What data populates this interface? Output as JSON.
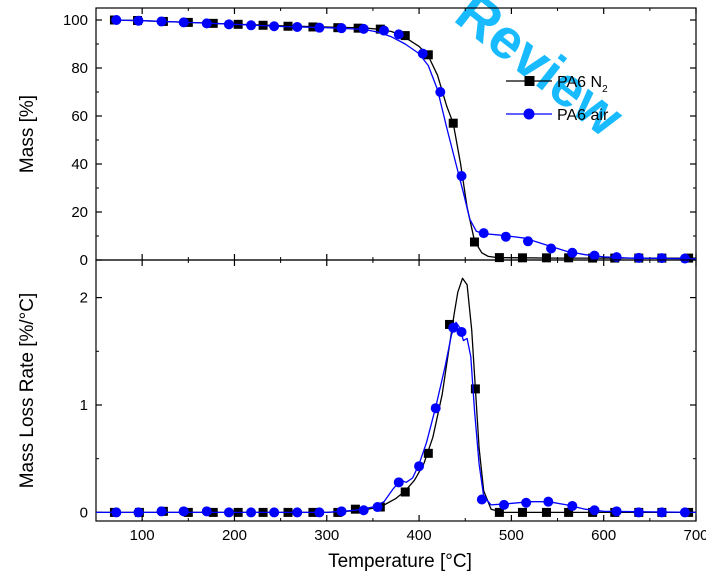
{
  "watermark": "Review",
  "chart_data": [
    {
      "type": "line",
      "panel": "top",
      "ylabel": "Mass [%]",
      "xlim": [
        50,
        700
      ],
      "ylim": [
        0,
        105
      ],
      "yticks": [
        0,
        20,
        40,
        60,
        80,
        100
      ],
      "legend": {
        "placement": "top-right"
      },
      "series": [
        {
          "name": "PA6 N",
          "name_sub": "2",
          "color": "#000000",
          "marker": "square",
          "curve": [
            [
              70,
              100
            ],
            [
              100,
              99.7
            ],
            [
              150,
              99
            ],
            [
              200,
              98.3
            ],
            [
              250,
              97.6
            ],
            [
              300,
              97.1
            ],
            [
              340,
              96.7
            ],
            [
              360,
              96
            ],
            [
              370,
              95.2
            ],
            [
              380,
              93.8
            ],
            [
              390,
              91.5
            ],
            [
              400,
              89
            ],
            [
              410,
              85
            ],
            [
              420,
              77
            ],
            [
              430,
              64
            ],
            [
              437,
              57
            ],
            [
              445,
              40
            ],
            [
              452,
              22
            ],
            [
              460,
              8
            ],
            [
              468,
              3
            ],
            [
              475,
              1.5
            ],
            [
              485,
              1.0
            ],
            [
              550,
              0.8
            ],
            [
              700,
              0.8
            ]
          ],
          "points": [
            [
              70,
              100
            ],
            [
              95,
              99.8
            ],
            [
              123,
              99.4
            ],
            [
              150,
              99
            ],
            [
              177,
              98.6
            ],
            [
              204,
              98.2
            ],
            [
              231,
              97.8
            ],
            [
              258,
              97.4
            ],
            [
              285,
              97.1
            ],
            [
              312,
              96.8
            ],
            [
              334,
              96.6
            ],
            [
              358,
              96.2
            ],
            [
              385,
              93.5
            ],
            [
              410,
              85.5
            ],
            [
              437,
              57
            ],
            [
              460,
              7.5
            ],
            [
              487,
              1.0
            ],
            [
              512,
              0.9
            ],
            [
              538,
              0.9
            ],
            [
              562,
              0.9
            ],
            [
              588,
              0.8
            ],
            [
              612,
              0.8
            ],
            [
              638,
              0.8
            ],
            [
              663,
              0.8
            ],
            [
              692,
              0.8
            ]
          ]
        },
        {
          "name": "PA6 air",
          "color": "#0000ff",
          "marker": "circle",
          "curve": [
            [
              70,
              100
            ],
            [
              100,
              99.7
            ],
            [
              150,
              99
            ],
            [
              200,
              98.2
            ],
            [
              250,
              97.3
            ],
            [
              300,
              96.8
            ],
            [
              340,
              96.1
            ],
            [
              355,
              95
            ],
            [
              370,
              93
            ],
            [
              385,
              90
            ],
            [
              400,
              86
            ],
            [
              410,
              81
            ],
            [
              420,
              71
            ],
            [
              430,
              55
            ],
            [
              440,
              40
            ],
            [
              448,
              28
            ],
            [
              455,
              17
            ],
            [
              462,
              12
            ],
            [
              470,
              11
            ],
            [
              490,
              10.3
            ],
            [
              515,
              9.1
            ],
            [
              540,
              6
            ],
            [
              560,
              3.6
            ],
            [
              580,
              2.2
            ],
            [
              600,
              1.3
            ],
            [
              630,
              0.8
            ],
            [
              700,
              0.5
            ]
          ],
          "points": [
            [
              72,
              100
            ],
            [
              96,
              99.7
            ],
            [
              121,
              99.4
            ],
            [
              145,
              99
            ],
            [
              170,
              98.6
            ],
            [
              194,
              98.2
            ],
            [
              218,
              97.8
            ],
            [
              243,
              97.4
            ],
            [
              268,
              97.1
            ],
            [
              292,
              96.8
            ],
            [
              316,
              96.6
            ],
            [
              340,
              96.3
            ],
            [
              362,
              95.6
            ],
            [
              378,
              94
            ],
            [
              404,
              86
            ],
            [
              423,
              70
            ],
            [
              446,
              35
            ],
            [
              470,
              11.2
            ],
            [
              494,
              9.7
            ],
            [
              518,
              7.8
            ],
            [
              543,
              4.8
            ],
            [
              566,
              3
            ],
            [
              590,
              1.8
            ],
            [
              614,
              1.2
            ],
            [
              638,
              0.9
            ],
            [
              663,
              0.8
            ],
            [
              688,
              0.6
            ]
          ]
        }
      ]
    },
    {
      "type": "line",
      "panel": "bottom",
      "xlabel": "Temperature [°C]",
      "ylabel": "Mass Loss Rate [%/°C]",
      "xlim": [
        50,
        700
      ],
      "ylim": [
        -0.08,
        2.35
      ],
      "xticks": [
        100,
        200,
        300,
        400,
        500,
        600,
        700
      ],
      "yticks": [
        0,
        1,
        2
      ],
      "series": [
        {
          "name": "PA6 N2",
          "color": "#000000",
          "marker": "square",
          "curve": [
            [
              50,
              0
            ],
            [
              300,
              0
            ],
            [
              340,
              0.02
            ],
            [
              360,
              0.06
            ],
            [
              375,
              0.13
            ],
            [
              385,
              0.2
            ],
            [
              395,
              0.3
            ],
            [
              405,
              0.45
            ],
            [
              415,
              0.7
            ],
            [
              425,
              1.1
            ],
            [
              432,
              1.5
            ],
            [
              438,
              1.85
            ],
            [
              442,
              2.05
            ],
            [
              447,
              2.18
            ],
            [
              452,
              2.12
            ],
            [
              457,
              1.7
            ],
            [
              461,
              1.15
            ],
            [
              465,
              0.6
            ],
            [
              470,
              0.2
            ],
            [
              478,
              0.03
            ],
            [
              490,
              0
            ],
            [
              700,
              0
            ]
          ],
          "points": [
            [
              70,
              0
            ],
            [
              97,
              0
            ],
            [
              123,
              0.01
            ],
            [
              150,
              0
            ],
            [
              177,
              0
            ],
            [
              204,
              0
            ],
            [
              231,
              0
            ],
            [
              258,
              0
            ],
            [
              285,
              0
            ],
            [
              312,
              0
            ],
            [
              331,
              0.03
            ],
            [
              358,
              0.05
            ],
            [
              385,
              0.19
            ],
            [
              410,
              0.55
            ],
            [
              433,
              1.75
            ],
            [
              461,
              1.15
            ],
            [
              487,
              0
            ],
            [
              512,
              0
            ],
            [
              538,
              0
            ],
            [
              562,
              0
            ],
            [
              588,
              0
            ],
            [
              612,
              0
            ],
            [
              638,
              0
            ],
            [
              663,
              0
            ],
            [
              692,
              0
            ]
          ]
        },
        {
          "name": "PA6 air",
          "color": "#0000ff",
          "marker": "circle",
          "curve": [
            [
              50,
              0
            ],
            [
              300,
              0
            ],
            [
              330,
              0.02
            ],
            [
              350,
              0.05
            ],
            [
              362,
              0.1
            ],
            [
              372,
              0.22
            ],
            [
              380,
              0.3
            ],
            [
              386,
              0.28
            ],
            [
              393,
              0.32
            ],
            [
              400,
              0.45
            ],
            [
              408,
              0.65
            ],
            [
              418,
              0.98
            ],
            [
              428,
              1.35
            ],
            [
              435,
              1.65
            ],
            [
              440,
              1.77
            ],
            [
              444,
              1.72
            ],
            [
              448,
              1.6
            ],
            [
              452,
              1.62
            ],
            [
              456,
              1.45
            ],
            [
              460,
              0.95
            ],
            [
              465,
              0.45
            ],
            [
              470,
              0.15
            ],
            [
              478,
              0.07
            ],
            [
              495,
              0.08
            ],
            [
              520,
              0.1
            ],
            [
              540,
              0.1
            ],
            [
              560,
              0.07
            ],
            [
              580,
              0.03
            ],
            [
              600,
              0.01
            ],
            [
              700,
              0
            ]
          ],
          "points": [
            [
              72,
              0
            ],
            [
              96,
              0
            ],
            [
              121,
              0.01
            ],
            [
              145,
              0.01
            ],
            [
              170,
              0.01
            ],
            [
              194,
              0
            ],
            [
              218,
              0
            ],
            [
              243,
              0
            ],
            [
              268,
              0
            ],
            [
              292,
              0
            ],
            [
              316,
              0.01
            ],
            [
              340,
              0.02
            ],
            [
              355,
              0.05
            ],
            [
              378,
              0.28
            ],
            [
              400,
              0.43
            ],
            [
              418,
              0.97
            ],
            [
              437,
              1.72
            ],
            [
              446,
              1.68
            ],
            [
              468,
              0.12
            ],
            [
              492,
              0.07
            ],
            [
              516,
              0.09
            ],
            [
              540,
              0.1
            ],
            [
              566,
              0.06
            ],
            [
              590,
              0.02
            ],
            [
              614,
              0.01
            ],
            [
              638,
              0
            ],
            [
              663,
              0
            ],
            [
              688,
              0
            ]
          ]
        }
      ]
    }
  ]
}
